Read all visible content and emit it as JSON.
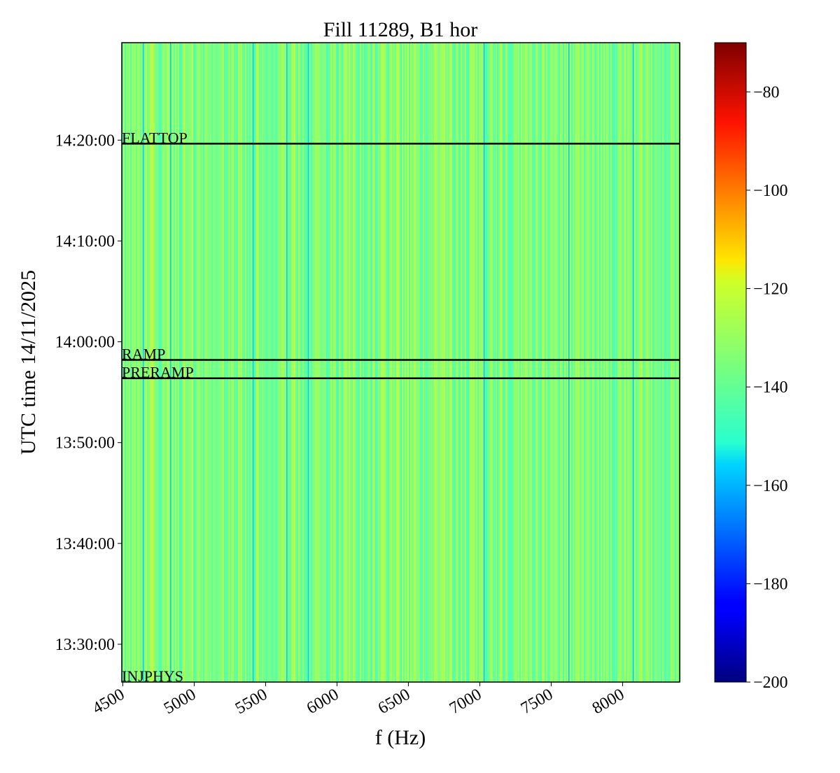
{
  "chart_data": {
    "type": "heatmap",
    "title": "Fill 11289, B1 hor",
    "xlabel": "f (Hz)",
    "ylabel": "UTC time 14/11/2025",
    "xlim": [
      4493,
      8400
    ],
    "ylim": [
      "13:26:15",
      "14:29:40"
    ],
    "x_ticks": [
      4500,
      5000,
      5500,
      6000,
      6500,
      7000,
      7500,
      8000
    ],
    "x_tick_labels": [
      "4500",
      "5000",
      "5500",
      "6000",
      "6500",
      "7000",
      "7500",
      "8000"
    ],
    "y_ticks": [
      "13:30:00",
      "13:40:00",
      "13:50:00",
      "14:00:00",
      "14:10:00",
      "14:20:00"
    ],
    "colormap": "jet",
    "colorbar": {
      "range": [
        -200,
        -70
      ],
      "ticks": [
        -80,
        -100,
        -120,
        -140,
        -160,
        -180,
        -200
      ],
      "tick_labels": [
        "−80",
        "−100",
        "−120",
        "−140",
        "−160",
        "−180",
        "−200"
      ]
    },
    "background_level_range": [
      -142,
      -128
    ],
    "low_power_lines_hz": [
      4640,
      4831,
      5409,
      5645,
      5796,
      7027,
      7620,
      8071
    ],
    "low_power_level": -158,
    "annotations": [
      {
        "label": "FLATTOP",
        "time": "14:19:39"
      },
      {
        "label": "RAMP",
        "time": "13:58:12"
      },
      {
        "label": "PRERAMP",
        "time": "13:56:23"
      },
      {
        "label": "INJPHYS",
        "time": "13:26:15"
      }
    ]
  }
}
